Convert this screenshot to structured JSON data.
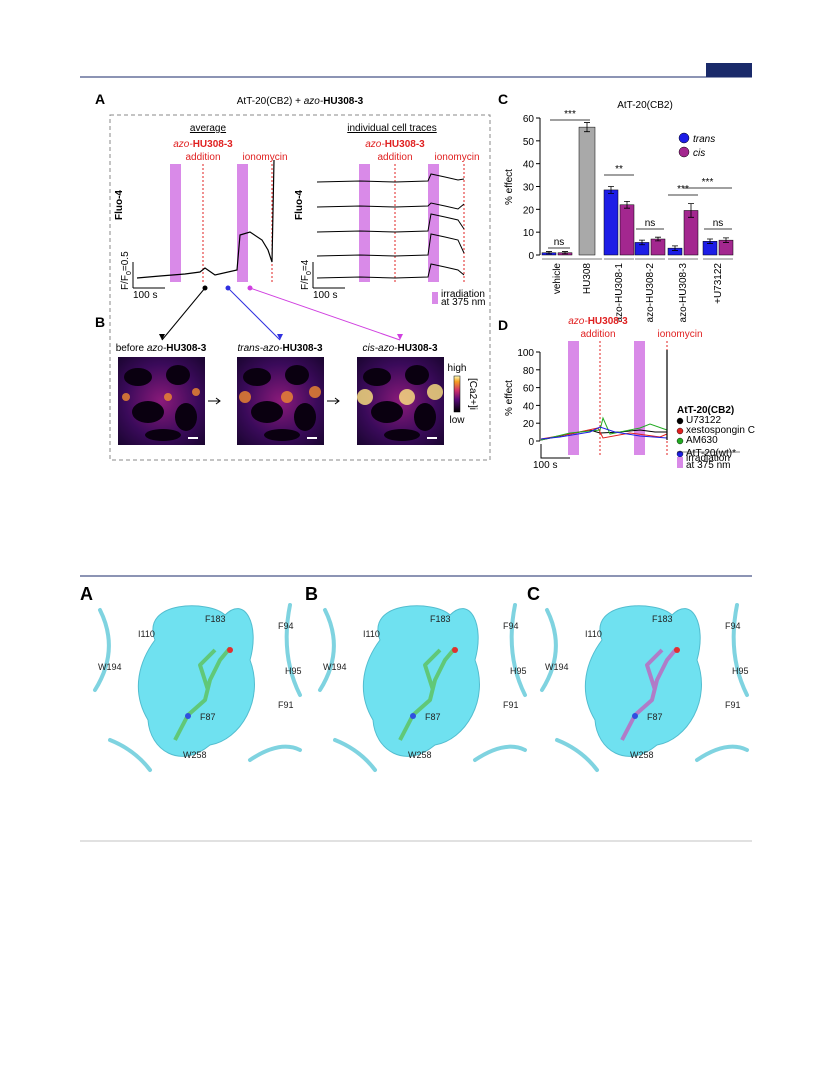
{
  "figure1": {
    "panel_a": {
      "label": "A",
      "title": {
        "prefix": "AtT-20(CB2) + ",
        "italic": "azo-",
        "bold": "HU308-3"
      },
      "left_heading": "average",
      "right_heading": "individual cell traces",
      "drug": {
        "italic": "azo-",
        "bold": "HU308-3"
      },
      "addition": "addition",
      "ionomycin": "ionomycin",
      "y_label": "Fluo-4",
      "left_scale": {
        "main": "F/F",
        "sub": "0",
        "value": "=0.5"
      },
      "right_scale": {
        "main": "F/F",
        "sub": "0",
        "value": "=4"
      },
      "time_scale": "100 s",
      "irradiation": [
        "irradiation",
        "at 375 nm"
      ]
    },
    "panel_b": {
      "label": "B",
      "images": [
        {
          "pre": "before ",
          "italic": "azo-",
          "bold": "HU308-3"
        },
        {
          "pre": "",
          "italic": "trans-azo-",
          "bold": "HU308-3"
        },
        {
          "pre": "",
          "italic": "cis-azo-",
          "bold": "HU308-3"
        }
      ],
      "colorbar": {
        "high": "high",
        "low": "low",
        "label": "[Ca2+]i"
      }
    },
    "panel_c": {
      "label": "C",
      "type": "bar",
      "title": "AtT-20(CB2)",
      "y_label": "% effect",
      "categories": [
        "vehicle",
        "HU308",
        "azo-HU308-1",
        "azo-HU308-2",
        "azo-HU308-3",
        "+U73122"
      ],
      "series": [
        {
          "name": "trans",
          "color": "#1d1de6",
          "values": [
            1,
            null,
            28.5,
            5.5,
            3,
            6
          ],
          "errors": [
            0.5,
            null,
            1.5,
            1,
            1,
            1
          ]
        },
        {
          "name": "cis",
          "color": "#a3278f",
          "values": [
            1,
            null,
            22,
            7,
            19.5,
            6.5
          ],
          "errors": [
            0.5,
            null,
            1.5,
            0.8,
            3,
            1
          ]
        }
      ],
      "control": {
        "values": [
          null,
          56,
          null,
          null,
          null,
          null
        ],
        "errors": [
          null,
          2,
          null,
          null,
          null,
          null
        ],
        "color": "#a9a9a9"
      },
      "significance": [
        "ns",
        "***",
        "**",
        "ns",
        "***",
        "***",
        "ns"
      ],
      "ylim": [
        0,
        60
      ],
      "yticks": [
        0,
        10,
        20,
        30,
        40,
        50,
        60
      ]
    },
    "panel_d": {
      "label": "D",
      "drug": {
        "italic": "azo-",
        "bold": "HU308-3"
      },
      "addition": "addition",
      "ionomycin": "ionomycin",
      "y_label": "% effect",
      "ylim": [
        0,
        100
      ],
      "yticks": [
        0,
        20,
        40,
        60,
        80,
        100
      ],
      "time_scale": "100 s",
      "legend_title": "AtT-20(CB2)",
      "legend": [
        {
          "name": "U73122",
          "color": "#000000"
        },
        {
          "name": "xestospongin C",
          "color": "#e02020"
        },
        {
          "name": "AM630",
          "color": "#22aa22"
        },
        {
          "name": "AtT-20(wt)*",
          "color": "#1d1de6"
        }
      ],
      "irradiation": [
        "irradiation",
        "at 375 nm"
      ]
    }
  },
  "figure2": {
    "panels": [
      {
        "label": "A",
        "residues": [
          "F183",
          "F94",
          "I110",
          "W194",
          "H95",
          "F87",
          "F91",
          "W258"
        ]
      },
      {
        "label": "B",
        "residues": [
          "F183",
          "F94",
          "I110",
          "W194",
          "H95",
          "F87",
          "F91",
          "W258"
        ]
      },
      {
        "label": "C",
        "residues": [
          "F183",
          "F94",
          "I110",
          "W194",
          "H95",
          "F87",
          "F91",
          "W258"
        ]
      }
    ]
  }
}
